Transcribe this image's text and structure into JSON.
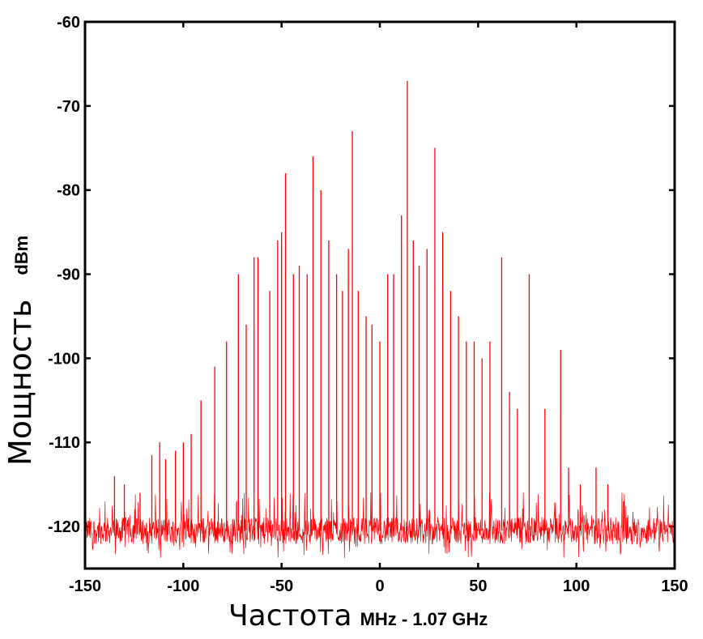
{
  "chart_data": {
    "type": "line",
    "title": "",
    "xlabel": "Частота",
    "xlabel_unit": "MHz - 1.07 GHz",
    "ylabel": "Мощность",
    "ylabel_unit": "dBm",
    "xlim": [
      -150,
      150
    ],
    "ylim": [
      -125,
      -60
    ],
    "xticks": [
      -150,
      -100,
      -50,
      0,
      50,
      100,
      150
    ],
    "yticks": [
      -60,
      -70,
      -80,
      -90,
      -100,
      -110,
      -120
    ],
    "grid": false,
    "legend": "none",
    "line_color": "#ff0000",
    "noise_floor": -120.5,
    "series": [
      {
        "values": [
          [
            -135,
            -114
          ],
          [
            -130,
            -115
          ],
          [
            -122,
            -116
          ],
          [
            -116,
            -111.5
          ],
          [
            -112,
            -110
          ],
          [
            -109,
            -112
          ],
          [
            -104,
            -111
          ],
          [
            -100,
            -110
          ],
          [
            -96,
            -109
          ],
          [
            -91,
            -105
          ],
          [
            -84,
            -101
          ],
          [
            -78,
            -98
          ],
          [
            -72,
            -90
          ],
          [
            -68,
            -96
          ],
          [
            -64,
            -88
          ],
          [
            -62,
            -88
          ],
          [
            -56,
            -92
          ],
          [
            -52,
            -86
          ],
          [
            -50,
            -85
          ],
          [
            -48,
            -78
          ],
          [
            -44,
            -90
          ],
          [
            -41,
            -89
          ],
          [
            -37,
            -90
          ],
          [
            -34,
            -76
          ],
          [
            -30,
            -80
          ],
          [
            -26,
            -86
          ],
          [
            -22,
            -90
          ],
          [
            -19,
            -92
          ],
          [
            -16,
            -87
          ],
          [
            -14,
            -73
          ],
          [
            -11,
            -92
          ],
          [
            -7,
            -95
          ],
          [
            -4,
            -96
          ],
          [
            0,
            -98
          ],
          [
            4,
            -90
          ],
          [
            7,
            -90
          ],
          [
            11,
            -83
          ],
          [
            14,
            -67
          ],
          [
            17,
            -86
          ],
          [
            20,
            -89
          ],
          [
            24,
            -87
          ],
          [
            28,
            -75
          ],
          [
            32,
            -85
          ],
          [
            36,
            -92
          ],
          [
            40,
            -95
          ],
          [
            44,
            -98
          ],
          [
            48,
            -98
          ],
          [
            52,
            -100
          ],
          [
            56,
            -98
          ],
          [
            62,
            -88
          ],
          [
            66,
            -104
          ],
          [
            70,
            -106
          ],
          [
            76,
            -90
          ],
          [
            84,
            -106
          ],
          [
            92,
            -99
          ],
          [
            96,
            -113
          ],
          [
            102,
            -115
          ],
          [
            110,
            -113
          ],
          [
            116,
            -115
          ],
          [
            124,
            -117
          ]
        ]
      }
    ]
  }
}
